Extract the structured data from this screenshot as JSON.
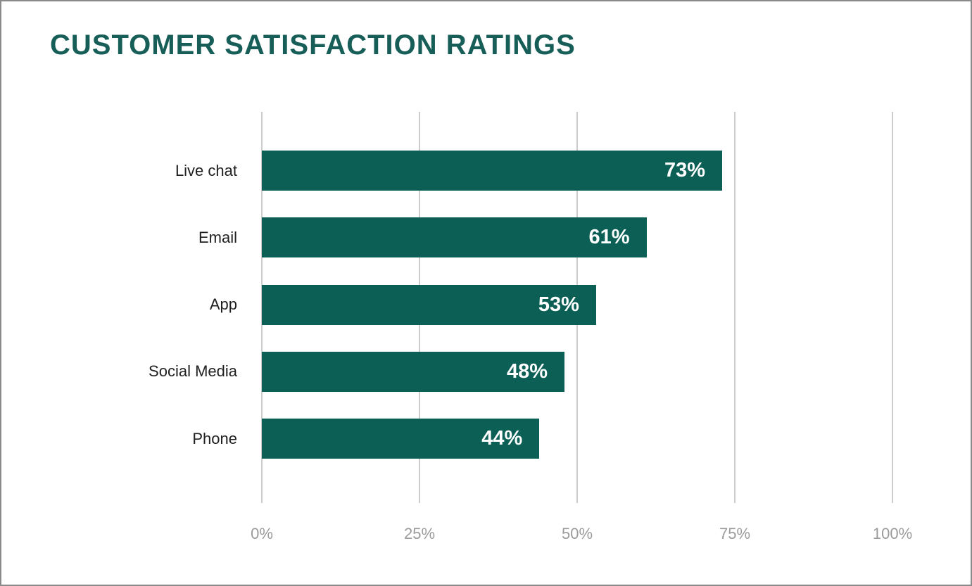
{
  "frame": {
    "background": "#ffffff",
    "border_color": "#8a8a8a"
  },
  "chart_data": {
    "type": "bar",
    "orientation": "horizontal",
    "title": "CUSTOMER SATISFACTION RATINGS",
    "categories": [
      "Live chat",
      "Email",
      "App",
      "Social Media",
      "Phone"
    ],
    "values": [
      73,
      61,
      53,
      48,
      44
    ],
    "value_labels": [
      "73%",
      "61%",
      "53%",
      "48%",
      "44%"
    ],
    "x_ticks": [
      "0%",
      "25%",
      "50%",
      "75%",
      "100%"
    ],
    "x_tick_values": [
      0,
      25,
      50,
      75,
      100
    ],
    "xlim": [
      0,
      100
    ],
    "xlabel": "",
    "ylabel": "",
    "grid": "vertical-only",
    "legend": "none",
    "value_label_position": "inside-right",
    "colors": {
      "bar": "#0C5F55",
      "title": "#165E57",
      "category_label": "#1F1F1F",
      "value_label": "#FFFFFF",
      "tick_label": "#9B9B9B",
      "gridline": "#CCCCCC"
    }
  }
}
